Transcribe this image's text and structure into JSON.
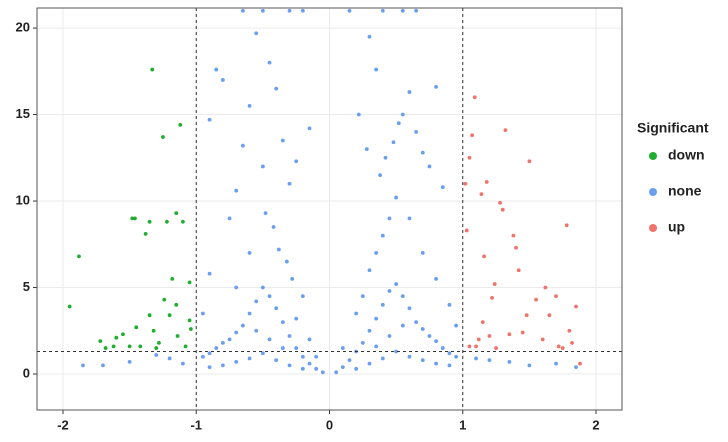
{
  "chart_data": {
    "type": "scatter",
    "xlim": [
      -2.195,
      2.195
    ],
    "ylim": [
      -2.08,
      21.16
    ],
    "xticks": [
      -2,
      -1,
      0,
      1,
      2
    ],
    "yticks": [
      0,
      5,
      10,
      15,
      20
    ],
    "grid": true,
    "vlines": [
      -1,
      1
    ],
    "hline": 1.3,
    "legend_title": "Significant",
    "legend_position": "right",
    "series": [
      {
        "name": "down",
        "color": "#1fae2f",
        "x": [
          -1.95,
          -1.88,
          -1.72,
          -1.68,
          -1.62,
          -1.55,
          -1.48,
          -1.46,
          -1.45,
          -1.42,
          -1.38,
          -1.35,
          -1.33,
          -1.32,
          -1.28,
          -1.25,
          -1.24,
          -1.22,
          -1.2,
          -1.18,
          -1.15,
          -1.14,
          -1.12,
          -1.1,
          -1.08,
          -1.05,
          -1.04,
          -1.3,
          -1.5,
          -1.6,
          -1.15,
          -1.35,
          -1.05
        ],
        "y": [
          3.9,
          6.8,
          1.9,
          1.5,
          1.6,
          2.3,
          9.0,
          9.0,
          2.7,
          1.6,
          8.1,
          8.8,
          17.6,
          2.5,
          1.8,
          13.7,
          4.3,
          8.8,
          3.4,
          5.5,
          9.3,
          2.2,
          14.4,
          8.8,
          1.6,
          3.1,
          2.6,
          1.5,
          1.6,
          2.1,
          4.0,
          3.4,
          5.3
        ]
      },
      {
        "name": "none",
        "color": "#6a9ef0",
        "x": [
          -0.05,
          -0.1,
          -0.15,
          -0.2,
          -0.25,
          -0.3,
          -0.35,
          -0.4,
          -0.45,
          -0.5,
          -0.55,
          -0.6,
          -0.65,
          -0.7,
          -0.75,
          -0.8,
          -0.85,
          -0.9,
          -0.95,
          -0.2,
          -0.3,
          -0.4,
          -0.5,
          -0.6,
          -0.7,
          -0.8,
          -0.9,
          -0.35,
          -0.45,
          -0.55,
          -0.28,
          -0.32,
          -0.38,
          -0.42,
          -0.48,
          -0.3,
          -0.25,
          -0.35,
          -0.4,
          -0.55,
          -0.6,
          -0.65,
          -0.7,
          -0.75,
          -0.8,
          -0.85,
          -0.9,
          -0.5,
          -0.2,
          -0.3,
          -0.65,
          -0.15,
          -0.45,
          -0.5,
          -0.9,
          -0.95,
          -1.2,
          -1.5,
          -1.7,
          -1.85,
          -1.1,
          -1.3,
          -0.6,
          -0.7,
          -0.2,
          -0.25,
          -0.15,
          -0.1,
          0.05,
          0.1,
          0.15,
          0.2,
          0.25,
          0.3,
          0.35,
          0.4,
          0.45,
          0.5,
          0.55,
          0.6,
          0.65,
          0.7,
          0.75,
          0.8,
          0.85,
          0.9,
          0.95,
          0.2,
          0.3,
          0.4,
          0.5,
          0.6,
          0.7,
          0.8,
          0.9,
          0.35,
          0.45,
          0.55,
          0.3,
          0.35,
          0.4,
          0.45,
          0.5,
          0.38,
          0.42,
          0.48,
          0.52,
          0.55,
          0.6,
          0.65,
          0.7,
          0.75,
          0.8,
          0.85,
          0.3,
          0.35,
          0.4,
          0.55,
          0.65,
          0.15,
          0.22,
          0.28,
          0.6,
          0.7,
          0.8,
          0.9,
          0.95,
          1.2,
          1.5,
          1.7,
          1.85,
          1.1,
          1.35,
          0.2,
          0.25,
          0.1
        ],
        "y": [
          0.1,
          0.3,
          0.6,
          1.0,
          1.5,
          2.2,
          3.0,
          3.8,
          4.5,
          5.0,
          4.2,
          3.5,
          2.8,
          2.4,
          2.0,
          1.8,
          1.5,
          1.2,
          1.0,
          0.3,
          0.5,
          0.8,
          1.2,
          0.9,
          0.7,
          0.5,
          0.4,
          1.5,
          2.0,
          2.5,
          5.5,
          6.5,
          7.2,
          8.5,
          9.3,
          11.0,
          12.3,
          13.5,
          16.5,
          19.7,
          15.5,
          13.2,
          10.6,
          9.0,
          17.0,
          17.6,
          14.7,
          21.0,
          21.0,
          21.0,
          21.0,
          14.2,
          18.0,
          12.0,
          5.8,
          3.5,
          0.9,
          0.7,
          0.5,
          0.5,
          0.6,
          1.1,
          7.0,
          5.0,
          4.5,
          3.2,
          2.0,
          1.0,
          0.1,
          0.4,
          0.8,
          1.3,
          1.8,
          2.5,
          3.2,
          4.0,
          4.8,
          5.2,
          4.5,
          3.8,
          3.0,
          2.6,
          2.2,
          1.9,
          1.5,
          1.2,
          1.0,
          0.3,
          0.6,
          0.9,
          1.3,
          1.0,
          0.8,
          0.6,
          0.5,
          1.6,
          2.2,
          2.8,
          6.0,
          7.0,
          8.0,
          9.0,
          10.2,
          11.5,
          12.5,
          13.4,
          14.5,
          15.0,
          16.3,
          14.0,
          12.8,
          12.0,
          16.6,
          10.8,
          19.5,
          17.6,
          21.0,
          21.0,
          21.0,
          21.0,
          15.0,
          13.0,
          9.0,
          7.0,
          5.5,
          4.0,
          2.8,
          0.8,
          0.5,
          0.6,
          0.4,
          0.9,
          0.7,
          3.5,
          4.5,
          1.5
        ]
      },
      {
        "name": "up",
        "color": "#f0736b",
        "x": [
          1.02,
          1.03,
          1.05,
          1.07,
          1.09,
          1.1,
          1.12,
          1.14,
          1.16,
          1.18,
          1.2,
          1.22,
          1.24,
          1.25,
          1.28,
          1.3,
          1.32,
          1.35,
          1.38,
          1.4,
          1.42,
          1.45,
          1.5,
          1.55,
          1.6,
          1.65,
          1.7,
          1.75,
          1.78,
          1.8,
          1.85,
          1.88,
          1.05,
          1.15,
          1.48,
          1.62,
          1.72,
          1.82
        ],
        "y": [
          11.0,
          8.3,
          12.5,
          13.8,
          16.0,
          1.6,
          2.0,
          10.4,
          6.8,
          11.1,
          2.2,
          4.4,
          5.2,
          1.5,
          9.9,
          9.5,
          14.1,
          2.3,
          8.0,
          7.3,
          6.0,
          2.4,
          12.3,
          4.3,
          2.0,
          3.4,
          4.5,
          1.5,
          8.6,
          2.5,
          3.9,
          0.6,
          1.6,
          3.0,
          3.4,
          5.0,
          1.6,
          1.8
        ]
      }
    ]
  }
}
